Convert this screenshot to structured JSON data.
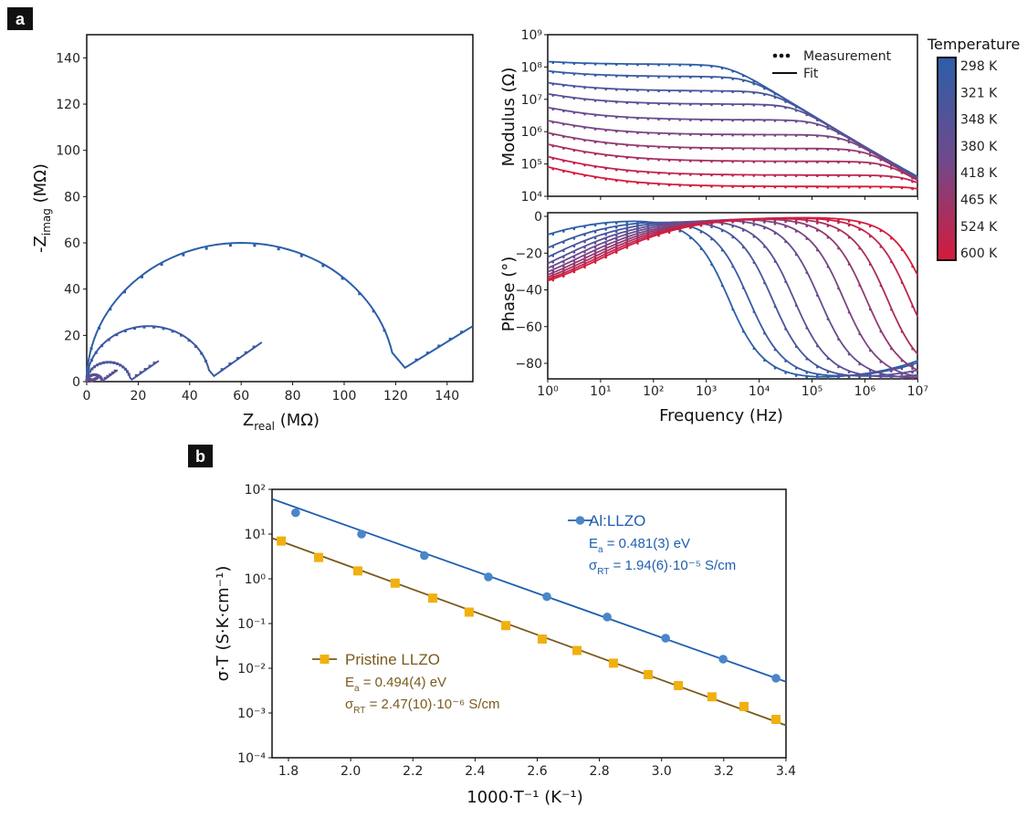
{
  "panels": {
    "a": "a",
    "b": "b"
  },
  "chart_data": [
    {
      "type": "line",
      "id": "nyquist",
      "xlabel": {
        "main": "Z",
        "sub": "real",
        "rest": " (MΩ)"
      },
      "ylabel": {
        "main": "-Z",
        "sub": "imag",
        "rest": " (MΩ)"
      },
      "xlim": [
        0,
        150
      ],
      "ylim": [
        0,
        150
      ],
      "xticks": [
        "0",
        "20",
        "40",
        "60",
        "80",
        "100",
        "120",
        "140"
      ],
      "yticks": [
        "0",
        "20",
        "40",
        "60",
        "80",
        "100",
        "120",
        "140"
      ],
      "series": [
        {
          "arc_diameter_MOhm": 120,
          "tail_end": [
            150,
            24
          ],
          "color_index": 0
        },
        {
          "arc_diameter_MOhm": 48,
          "tail_end": [
            68,
            17
          ],
          "color_index": 1
        },
        {
          "arc_diameter_MOhm": 17,
          "tail_end": [
            28,
            9
          ],
          "color_index": 2
        },
        {
          "arc_diameter_MOhm": 6,
          "tail_end": [
            12,
            5
          ],
          "color_index": 3
        },
        {
          "arc_diameter_MOhm": 2,
          "tail_end": [
            4.5,
            1.5
          ],
          "color_index": 4
        }
      ]
    },
    {
      "type": "line",
      "id": "bode",
      "xlabel": "Frequency (Hz)",
      "modulus_ylabel": "Modulus (Ω)",
      "phase_ylabel": "Phase (°)",
      "xlim": [
        1,
        10000000
      ],
      "x_scale": "log",
      "modulus_ylim": [
        10000,
        1000000000
      ],
      "modulus_scale": "log",
      "phase_ylim": [
        -89,
        0
      ],
      "xticks": [
        "10⁰",
        "10¹",
        "10²",
        "10³",
        "10⁴",
        "10⁵",
        "10⁶",
        "10⁷"
      ],
      "modulus_yticks": [
        "10⁴",
        "10⁵",
        "10⁶",
        "10⁷",
        "10⁸",
        "10⁹"
      ],
      "phase_yticks": [
        "0",
        "−20",
        "−40",
        "−60",
        "−80"
      ],
      "legend": {
        "measurement": "Measurement",
        "fit": "Fit",
        "placement": "top-right"
      },
      "bulk_resistance_ohm": [
        120000000,
        50000000,
        18000000,
        7000000,
        2300000,
        800000,
        300000,
        120000,
        45000,
        20000
      ],
      "low_freq_modulus_ratio": [
        0.3,
        0.63,
        0.97,
        1.3,
        1.63,
        1.97,
        2.3,
        2.63,
        2.97,
        3.3
      ],
      "capacitance_F": 5e-13
    },
    {
      "type": "scatter",
      "id": "arrhenius",
      "xlabel": "1000·T⁻¹ (K⁻¹)",
      "ylabel": "σ·T (S·K·cm⁻¹)",
      "xlim": [
        1.75,
        3.4
      ],
      "ylim": [
        0.0001,
        100
      ],
      "y_scale": "log",
      "xticks": [
        "1.8",
        "2.0",
        "2.2",
        "2.4",
        "2.6",
        "2.8",
        "3.0",
        "3.2",
        "3.4"
      ],
      "yticks": [
        "10⁻⁴",
        "10⁻³",
        "10⁻²",
        "10⁻¹",
        "10⁰",
        "10¹",
        "10²"
      ],
      "series": [
        {
          "name": "Al:LLZO",
          "marker": "circle",
          "color": "#4a86c8",
          "line_color": "#1f5fae",
          "ea_label": {
            "main": "E",
            "sub": "a",
            "rest": " = 0.481(3) eV"
          },
          "sigma_label": {
            "main": "σ",
            "sub": "RT",
            "rest": " = 1.94(6)·10⁻⁵ S/cm"
          },
          "x": [
            1.823,
            2.035,
            2.237,
            2.443,
            2.631,
            2.825,
            3.013,
            3.198,
            3.368
          ],
          "y": [
            30,
            10,
            3.3,
            1.1,
            0.4,
            0.14,
            0.047,
            0.016,
            0.006
          ],
          "fit": {
            "x": [
              1.75,
              3.4
            ],
            "y": [
              60,
              0.005
            ]
          }
        },
        {
          "name": "Pristine LLZO",
          "marker": "square",
          "color": "#f0b010",
          "line_color": "#7a5a1e",
          "ea_label": {
            "main": "E",
            "sub": "a",
            "rest": " = 0.494(4) eV"
          },
          "sigma_label": {
            "main": "σ",
            "sub": "RT",
            "rest": " = 2.47(10)·10⁻⁶ S/cm"
          },
          "x": [
            1.777,
            1.897,
            2.023,
            2.143,
            2.264,
            2.381,
            2.499,
            2.616,
            2.728,
            2.845,
            2.957,
            3.054,
            3.162,
            3.265,
            3.368
          ],
          "y": [
            7,
            3.0,
            1.5,
            0.8,
            0.37,
            0.18,
            0.09,
            0.045,
            0.025,
            0.013,
            0.0072,
            0.0041,
            0.0023,
            0.0014,
            0.00072
          ],
          "fit": {
            "x": [
              1.75,
              3.4
            ],
            "y": [
              8,
              0.00053
            ]
          }
        }
      ]
    }
  ],
  "colorbar": {
    "title": "Temperature",
    "labels": [
      "298 K",
      "321 K",
      "348 K",
      "380 K",
      "418 K",
      "465 K",
      "524 K",
      "600 K"
    ],
    "colors": {
      "cold": "#2c5fa8",
      "mid": "#6e4a8c",
      "hot": "#d61a3c"
    }
  }
}
